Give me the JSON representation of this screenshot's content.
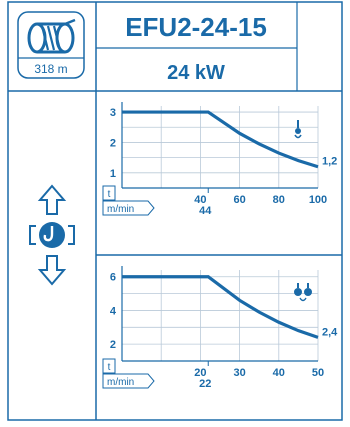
{
  "model": "EFU2-24-15",
  "power": "24 kW",
  "drum_length": "318 m",
  "colors": {
    "accent": "#1a6aa8",
    "frame": "#1a6aa8",
    "grid": "#b9c9d8"
  },
  "icons": [
    "cable-drum-icon",
    "lift-hook-icon",
    "single-hook-load-icon",
    "double-hook-load-icon"
  ],
  "chart_data": [
    {
      "type": "line",
      "ylim": [
        0.5,
        3.2
      ],
      "xlim": [
        0,
        100
      ],
      "yticks": [
        "1",
        "2",
        "3"
      ],
      "xticks": [
        "40",
        "60",
        "80",
        "100"
      ],
      "extra_xtick": "44",
      "ylabel": "t",
      "xlabel": "m/min",
      "end_label": "1,2",
      "x": [
        0,
        12,
        44,
        60,
        70,
        80,
        90,
        100,
        100
      ],
      "y": [
        3,
        3,
        3,
        2.3,
        1.95,
        1.65,
        1.4,
        1.2,
        1.2
      ]
    },
    {
      "type": "line",
      "ylim": [
        1.0,
        6.4
      ],
      "xlim": [
        0,
        50
      ],
      "yticks": [
        "2",
        "4",
        "6"
      ],
      "xticks": [
        "20",
        "30",
        "40",
        "50"
      ],
      "extra_xtick": "22",
      "ylabel": "t",
      "xlabel": "m/min",
      "end_label": "2,4",
      "x": [
        0,
        6,
        22,
        30,
        35,
        40,
        45,
        50,
        50
      ],
      "y": [
        6,
        6,
        6,
        4.6,
        3.9,
        3.3,
        2.8,
        2.4,
        2.4
      ]
    }
  ]
}
